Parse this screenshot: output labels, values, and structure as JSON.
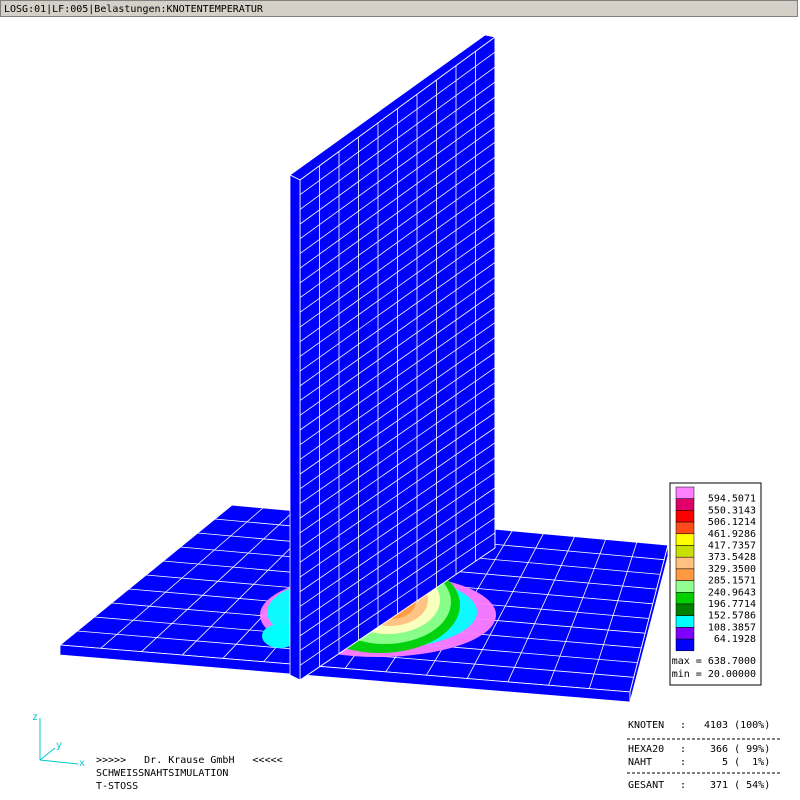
{
  "window": {
    "title": "LOSG:01|LF:005|Belastungen:KNOTENTEMPERATUR"
  },
  "legend": {
    "levels": [
      "594.5071",
      "550.3143",
      "506.1214",
      "461.9286",
      "417.7357",
      "373.5428",
      "329.3500",
      "285.1571",
      "240.9643",
      "196.7714",
      "152.5786",
      "108.3857",
      "64.1928"
    ],
    "colors": [
      "#ff80ff",
      "#e0006a",
      "#ff0000",
      "#ff4a1a",
      "#ffff00",
      "#c8e000",
      "#ffc080",
      "#ff9a40",
      "#90ff90",
      "#00d000",
      "#008000",
      "#00ffff",
      "#8000ff",
      "#0000ff"
    ],
    "max": "max = 638.7000",
    "min": "min = 20.00000"
  },
  "stats": [
    {
      "label": "KNOTEN",
      "value": "4103 (100%)"
    },
    {
      "label": "HEXA20",
      "value": " 366 ( 99%)"
    },
    {
      "label": "NAHT",
      "value": "   5 (  1%)"
    },
    {
      "label": "GESANT",
      "value": " 371 ( 54%)"
    }
  ],
  "footer": {
    "company": ">>>>>   Dr. Krause GmbH   <<<<<",
    "line2": "SCHWEISSNAHTSIMULATION",
    "line3": "T-STOSS"
  },
  "axes": {
    "z": "z",
    "y": "y",
    "x": "x"
  }
}
